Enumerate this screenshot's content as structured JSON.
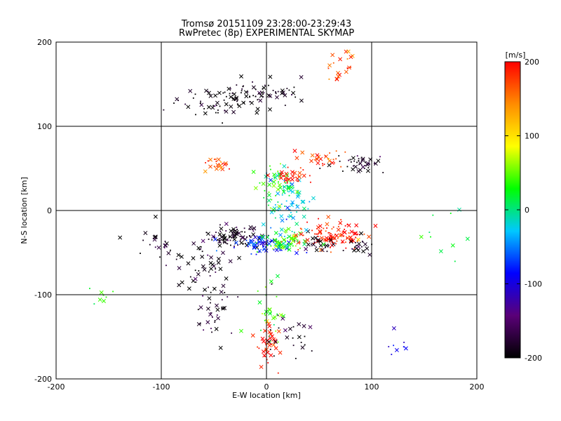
{
  "chart_data": {
    "type": "scatter",
    "title": "Tromsø 20151109 23:28:00-23:29:43",
    "subtitle": "RwPretec (8p) EXPERIMENTAL SKYMAP",
    "xlabel": "E-W location [km]",
    "ylabel": "N-S location [km]",
    "xlim": [
      -200,
      200
    ],
    "ylim": [
      -200,
      200
    ],
    "xticks": [
      "-200",
      "-100",
      "0",
      "100",
      "200"
    ],
    "yticks": [
      "-200",
      "-100",
      "0",
      "100",
      "200"
    ],
    "grid": true,
    "colorbar": {
      "label": "[m/s]",
      "range": [
        -200,
        200
      ],
      "ticks": [
        "200",
        "100",
        "0",
        "-100",
        "-200"
      ],
      "colors": [
        "#000000",
        "#5a0078",
        "#0000ff",
        "#00c8ff",
        "#00ff00",
        "#ffff00",
        "#ff8c00",
        "#ff0000"
      ]
    },
    "markers": [
      "x",
      "dot"
    ],
    "clusters": [
      {
        "cx": -30,
        "cy": -30,
        "sx": 12,
        "sy": 6,
        "n": 90,
        "v": -190
      },
      {
        "cx": 0,
        "cy": -40,
        "sx": 14,
        "sy": 5,
        "n": 80,
        "v": -80
      },
      {
        "cx": 15,
        "cy": -38,
        "sx": 12,
        "sy": 6,
        "n": 60,
        "v": 40
      },
      {
        "cx": 60,
        "cy": -30,
        "sx": 18,
        "sy": 8,
        "n": 110,
        "v": 190
      },
      {
        "cx": 50,
        "cy": -40,
        "sx": 8,
        "sy": 6,
        "n": 25,
        "v": -190
      },
      {
        "cx": 90,
        "cy": -40,
        "sx": 8,
        "sy": 6,
        "n": 20,
        "v": -190
      },
      {
        "cx": 20,
        "cy": 10,
        "sx": 12,
        "sy": 18,
        "n": 80,
        "v": -20
      },
      {
        "cx": 10,
        "cy": 30,
        "sx": 10,
        "sy": 12,
        "n": 40,
        "v": 40
      },
      {
        "cx": 25,
        "cy": 40,
        "sx": 10,
        "sy": 5,
        "n": 30,
        "v": 190
      },
      {
        "cx": 50,
        "cy": 60,
        "sx": 10,
        "sy": 5,
        "n": 30,
        "v": 180
      },
      {
        "cx": 90,
        "cy": 55,
        "sx": 15,
        "sy": 6,
        "n": 40,
        "v": -190
      },
      {
        "cx": -45,
        "cy": 55,
        "sx": 6,
        "sy": 4,
        "n": 25,
        "v": 170
      },
      {
        "cx": -45,
        "cy": 130,
        "sx": 18,
        "sy": 10,
        "n": 60,
        "v": -200
      },
      {
        "cx": -10,
        "cy": 140,
        "sx": 12,
        "sy": 8,
        "n": 40,
        "v": -200
      },
      {
        "cx": 20,
        "cy": 140,
        "sx": 8,
        "sy": 8,
        "n": 15,
        "v": -200
      },
      {
        "cx": -60,
        "cy": -65,
        "sx": 10,
        "sy": 15,
        "n": 40,
        "v": -190
      },
      {
        "cx": -50,
        "cy": -110,
        "sx": 12,
        "sy": 20,
        "n": 40,
        "v": -190
      },
      {
        "cx": 0,
        "cy": -160,
        "sx": 6,
        "sy": 15,
        "n": 40,
        "v": 190
      },
      {
        "cx": 0,
        "cy": -120,
        "sx": 8,
        "sy": 20,
        "n": 30,
        "v": 40
      },
      {
        "cx": 25,
        "cy": -150,
        "sx": 15,
        "sy": 20,
        "n": 25,
        "v": -190
      },
      {
        "cx": 70,
        "cy": 170,
        "sx": 8,
        "sy": 10,
        "n": 20,
        "v": 170
      },
      {
        "cx": -155,
        "cy": -100,
        "sx": 8,
        "sy": 10,
        "n": 8,
        "v": 20
      },
      {
        "cx": 170,
        "cy": -35,
        "sx": 12,
        "sy": 15,
        "n": 10,
        "v": 20
      },
      {
        "cx": -100,
        "cy": -40,
        "sx": 15,
        "sy": 15,
        "n": 25,
        "v": -190
      },
      {
        "cx": 125,
        "cy": -160,
        "sx": 8,
        "sy": 8,
        "n": 8,
        "v": -100
      }
    ]
  }
}
